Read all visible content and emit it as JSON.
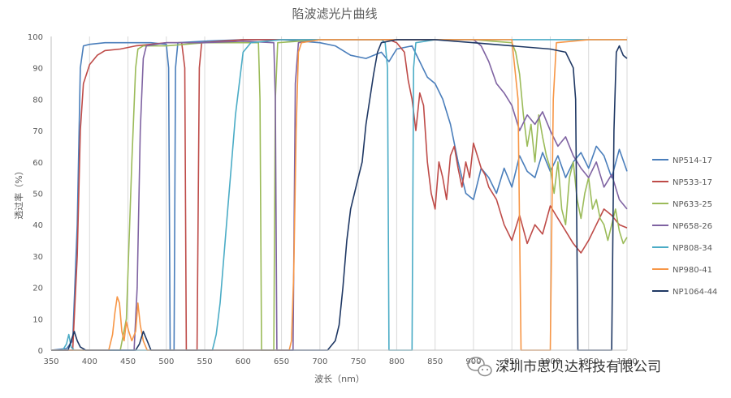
{
  "chart_data": {
    "type": "line",
    "title": "陷波滤光片曲线",
    "xlabel": "波长（nm）",
    "ylabel": "透过率（%）",
    "xlim": [
      350,
      1100
    ],
    "ylim": [
      0,
      100
    ],
    "xticks": [
      350,
      400,
      450,
      500,
      550,
      600,
      650,
      700,
      750,
      800,
      850,
      900,
      950,
      1000,
      1050,
      1100
    ],
    "yticks": [
      0,
      10,
      20,
      30,
      40,
      50,
      60,
      70,
      80,
      90,
      100
    ],
    "grid": "vertical",
    "legend_position": "right",
    "series": [
      {
        "name": "NP514-17",
        "color": "#4a7ebb",
        "points": [
          [
            350,
            0
          ],
          [
            370,
            0.5
          ],
          [
            378,
            3
          ],
          [
            384,
            40
          ],
          [
            388,
            90
          ],
          [
            392,
            97
          ],
          [
            400,
            97.5
          ],
          [
            420,
            98
          ],
          [
            440,
            98
          ],
          [
            460,
            98
          ],
          [
            480,
            98
          ],
          [
            500,
            97.5
          ],
          [
            503,
            90
          ],
          [
            505,
            0
          ],
          [
            510,
            0
          ],
          [
            512,
            90
          ],
          [
            515,
            98
          ],
          [
            550,
            98.5
          ],
          [
            600,
            99
          ],
          [
            650,
            99
          ],
          [
            700,
            98
          ],
          [
            720,
            97
          ],
          [
            740,
            94
          ],
          [
            760,
            93
          ],
          [
            780,
            95
          ],
          [
            790,
            92
          ],
          [
            800,
            96
          ],
          [
            820,
            97
          ],
          [
            830,
            92
          ],
          [
            840,
            87
          ],
          [
            850,
            85
          ],
          [
            860,
            80
          ],
          [
            870,
            72
          ],
          [
            880,
            60
          ],
          [
            890,
            50
          ],
          [
            900,
            48
          ],
          [
            910,
            58
          ],
          [
            920,
            55
          ],
          [
            930,
            50
          ],
          [
            940,
            58
          ],
          [
            950,
            52
          ],
          [
            960,
            62
          ],
          [
            970,
            57
          ],
          [
            980,
            55
          ],
          [
            990,
            63
          ],
          [
            1000,
            57
          ],
          [
            1010,
            62
          ],
          [
            1020,
            55
          ],
          [
            1030,
            60
          ],
          [
            1040,
            63
          ],
          [
            1050,
            58
          ],
          [
            1060,
            65
          ],
          [
            1070,
            62
          ],
          [
            1080,
            55
          ],
          [
            1090,
            64
          ],
          [
            1100,
            57
          ]
        ]
      },
      {
        "name": "NP533-17",
        "color": "#be4b48",
        "points": [
          [
            350,
            0
          ],
          [
            378,
            0
          ],
          [
            384,
            30
          ],
          [
            388,
            70
          ],
          [
            392,
            85
          ],
          [
            400,
            91
          ],
          [
            410,
            94
          ],
          [
            420,
            95.5
          ],
          [
            440,
            96
          ],
          [
            460,
            97
          ],
          [
            480,
            97.5
          ],
          [
            500,
            98
          ],
          [
            520,
            98
          ],
          [
            524,
            90
          ],
          [
            526,
            0
          ],
          [
            540,
            0
          ],
          [
            543,
            90
          ],
          [
            546,
            98
          ],
          [
            600,
            99
          ],
          [
            650,
            99
          ],
          [
            700,
            99
          ],
          [
            750,
            99
          ],
          [
            790,
            99
          ],
          [
            800,
            98
          ],
          [
            810,
            95
          ],
          [
            815,
            86
          ],
          [
            820,
            80
          ],
          [
            825,
            70
          ],
          [
            830,
            82
          ],
          [
            835,
            78
          ],
          [
            840,
            60
          ],
          [
            845,
            50
          ],
          [
            850,
            45
          ],
          [
            855,
            60
          ],
          [
            860,
            55
          ],
          [
            865,
            48
          ],
          [
            870,
            62
          ],
          [
            875,
            65
          ],
          [
            880,
            58
          ],
          [
            885,
            52
          ],
          [
            890,
            60
          ],
          [
            895,
            55
          ],
          [
            900,
            66
          ],
          [
            905,
            62
          ],
          [
            910,
            58
          ],
          [
            915,
            56
          ],
          [
            920,
            52
          ],
          [
            930,
            48
          ],
          [
            940,
            40
          ],
          [
            950,
            35
          ],
          [
            960,
            43
          ],
          [
            970,
            34
          ],
          [
            980,
            40
          ],
          [
            990,
            37
          ],
          [
            1000,
            46
          ],
          [
            1010,
            42
          ],
          [
            1020,
            38
          ],
          [
            1030,
            34
          ],
          [
            1040,
            31
          ],
          [
            1050,
            35
          ],
          [
            1060,
            40
          ],
          [
            1070,
            45
          ],
          [
            1080,
            43
          ],
          [
            1090,
            40
          ],
          [
            1100,
            39
          ]
        ]
      },
      {
        "name": "NP633-25",
        "color": "#9bbb59",
        "points": [
          [
            350,
            0
          ],
          [
            440,
            0
          ],
          [
            448,
            10
          ],
          [
            455,
            60
          ],
          [
            460,
            90
          ],
          [
            463,
            96
          ],
          [
            470,
            97
          ],
          [
            500,
            97
          ],
          [
            550,
            98
          ],
          [
            600,
            98
          ],
          [
            620,
            98
          ],
          [
            622,
            80
          ],
          [
            624,
            0
          ],
          [
            640,
            0
          ],
          [
            642,
            80
          ],
          [
            645,
            98
          ],
          [
            700,
            99
          ],
          [
            750,
            99
          ],
          [
            800,
            99
          ],
          [
            850,
            99
          ],
          [
            900,
            99
          ],
          [
            950,
            98
          ],
          [
            955,
            95
          ],
          [
            960,
            88
          ],
          [
            965,
            75
          ],
          [
            970,
            65
          ],
          [
            975,
            72
          ],
          [
            980,
            60
          ],
          [
            985,
            75
          ],
          [
            990,
            68
          ],
          [
            995,
            62
          ],
          [
            1000,
            58
          ],
          [
            1005,
            50
          ],
          [
            1010,
            60
          ],
          [
            1015,
            45
          ],
          [
            1020,
            40
          ],
          [
            1025,
            55
          ],
          [
            1030,
            60
          ],
          [
            1035,
            48
          ],
          [
            1040,
            42
          ],
          [
            1045,
            50
          ],
          [
            1050,
            55
          ],
          [
            1055,
            45
          ],
          [
            1060,
            48
          ],
          [
            1065,
            42
          ],
          [
            1070,
            40
          ],
          [
            1075,
            35
          ],
          [
            1080,
            40
          ],
          [
            1085,
            45
          ],
          [
            1090,
            38
          ],
          [
            1095,
            34
          ],
          [
            1100,
            36
          ]
        ]
      },
      {
        "name": "NP658-26",
        "color": "#7f63a2",
        "points": [
          [
            350,
            0
          ],
          [
            458,
            0
          ],
          [
            462,
            20
          ],
          [
            466,
            70
          ],
          [
            470,
            93
          ],
          [
            474,
            97
          ],
          [
            500,
            98
          ],
          [
            550,
            98
          ],
          [
            600,
            98.5
          ],
          [
            640,
            98
          ],
          [
            642,
            80
          ],
          [
            644,
            0
          ],
          [
            665,
            0
          ],
          [
            668,
            85
          ],
          [
            672,
            98
          ],
          [
            700,
            99
          ],
          [
            750,
            99
          ],
          [
            800,
            99
          ],
          [
            850,
            99
          ],
          [
            900,
            99
          ],
          [
            910,
            97
          ],
          [
            920,
            92
          ],
          [
            930,
            85
          ],
          [
            940,
            82
          ],
          [
            950,
            78
          ],
          [
            960,
            70
          ],
          [
            970,
            75
          ],
          [
            980,
            72
          ],
          [
            990,
            76
          ],
          [
            1000,
            70
          ],
          [
            1010,
            65
          ],
          [
            1020,
            68
          ],
          [
            1030,
            62
          ],
          [
            1040,
            58
          ],
          [
            1050,
            55
          ],
          [
            1060,
            60
          ],
          [
            1070,
            52
          ],
          [
            1080,
            56
          ],
          [
            1090,
            48
          ],
          [
            1100,
            45
          ]
        ]
      },
      {
        "name": "NP808-34",
        "color": "#4bacc6",
        "points": [
          [
            350,
            0
          ],
          [
            365,
            0
          ],
          [
            370,
            2
          ],
          [
            373,
            5
          ],
          [
            376,
            1
          ],
          [
            380,
            0
          ],
          [
            560,
            0
          ],
          [
            565,
            5
          ],
          [
            570,
            15
          ],
          [
            575,
            30
          ],
          [
            580,
            45
          ],
          [
            585,
            60
          ],
          [
            590,
            75
          ],
          [
            595,
            85
          ],
          [
            600,
            95
          ],
          [
            610,
            98
          ],
          [
            650,
            99
          ],
          [
            700,
            99
          ],
          [
            750,
            99
          ],
          [
            780,
            99
          ],
          [
            785,
            98
          ],
          [
            788,
            90
          ],
          [
            790,
            0
          ],
          [
            820,
            0
          ],
          [
            822,
            90
          ],
          [
            825,
            98
          ],
          [
            850,
            99
          ],
          [
            900,
            99
          ],
          [
            950,
            99
          ],
          [
            1000,
            99
          ],
          [
            1050,
            99
          ],
          [
            1100,
            99
          ]
        ]
      },
      {
        "name": "NP980-41",
        "color": "#f79646",
        "points": [
          [
            350,
            0
          ],
          [
            425,
            0
          ],
          [
            430,
            5
          ],
          [
            433,
            12
          ],
          [
            436,
            17
          ],
          [
            439,
            15
          ],
          [
            442,
            6
          ],
          [
            445,
            3
          ],
          [
            448,
            9
          ],
          [
            451,
            6
          ],
          [
            455,
            3
          ],
          [
            460,
            6
          ],
          [
            463,
            15
          ],
          [
            466,
            8
          ],
          [
            470,
            3
          ],
          [
            475,
            0
          ],
          [
            660,
            0
          ],
          [
            663,
            3
          ],
          [
            666,
            25
          ],
          [
            669,
            70
          ],
          [
            672,
            95
          ],
          [
            676,
            98
          ],
          [
            700,
            99
          ],
          [
            750,
            99
          ],
          [
            800,
            99
          ],
          [
            850,
            99
          ],
          [
            900,
            99
          ],
          [
            950,
            99
          ],
          [
            958,
            80
          ],
          [
            962,
            0
          ],
          [
            1000,
            0
          ],
          [
            1004,
            80
          ],
          [
            1008,
            98
          ],
          [
            1050,
            99
          ],
          [
            1100,
            99
          ]
        ]
      },
      {
        "name": "NP1064-44",
        "color": "#1f3864",
        "points": [
          [
            350,
            0
          ],
          [
            372,
            0
          ],
          [
            376,
            3
          ],
          [
            380,
            6
          ],
          [
            384,
            3
          ],
          [
            388,
            1
          ],
          [
            395,
            0
          ],
          [
            460,
            0
          ],
          [
            465,
            2
          ],
          [
            470,
            6
          ],
          [
            475,
            3
          ],
          [
            480,
            0
          ],
          [
            710,
            0
          ],
          [
            720,
            3
          ],
          [
            725,
            8
          ],
          [
            730,
            20
          ],
          [
            735,
            35
          ],
          [
            740,
            45
          ],
          [
            745,
            50
          ],
          [
            750,
            55
          ],
          [
            755,
            60
          ],
          [
            760,
            72
          ],
          [
            765,
            80
          ],
          [
            770,
            88
          ],
          [
            775,
            95
          ],
          [
            780,
            98
          ],
          [
            800,
            99
          ],
          [
            850,
            99
          ],
          [
            900,
            98
          ],
          [
            950,
            97
          ],
          [
            1000,
            96
          ],
          [
            1020,
            95
          ],
          [
            1030,
            90
          ],
          [
            1033,
            80
          ],
          [
            1036,
            0
          ],
          [
            1080,
            0
          ],
          [
            1083,
            70
          ],
          [
            1086,
            95
          ],
          [
            1090,
            97
          ],
          [
            1095,
            94
          ],
          [
            1100,
            93
          ]
        ]
      }
    ]
  },
  "watermark": {
    "icon": "wechat-icon",
    "text": "深圳市思贝达科技有限公司"
  }
}
